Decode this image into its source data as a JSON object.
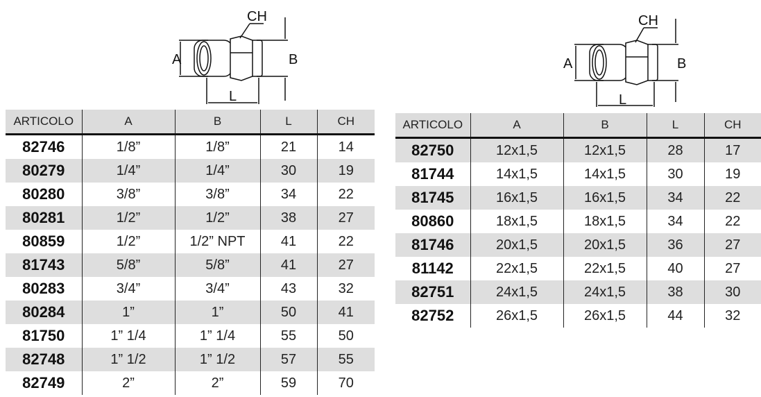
{
  "diagram_labels": {
    "ch": "CH",
    "a": "A",
    "b": "B",
    "l": "L"
  },
  "headers": [
    "ARTICOLO",
    "A",
    "B",
    "L",
    "CH"
  ],
  "table_left": [
    [
      "82746",
      "1/8”",
      "1/8”",
      "21",
      "14"
    ],
    [
      "80279",
      "1/4”",
      "1/4”",
      "30",
      "19"
    ],
    [
      "80280",
      "3/8”",
      "3/8”",
      "34",
      "22"
    ],
    [
      "80281",
      "1/2”",
      "1/2”",
      "38",
      "27"
    ],
    [
      "80859",
      "1/2”",
      "1/2” NPT",
      "41",
      "22"
    ],
    [
      "81743",
      "5/8”",
      "5/8”",
      "41",
      "27"
    ],
    [
      "80283",
      "3/4”",
      "3/4”",
      "43",
      "32"
    ],
    [
      "80284",
      "1”",
      "1”",
      "50",
      "41"
    ],
    [
      "81750",
      "1” 1/4",
      "1” 1/4",
      "55",
      "50"
    ],
    [
      "82748",
      "1” 1/2",
      "1” 1/2",
      "57",
      "55"
    ],
    [
      "82749",
      "2”",
      "2”",
      "59",
      "70"
    ]
  ],
  "table_right": [
    [
      "82750",
      "12x1,5",
      "12x1,5",
      "28",
      "17"
    ],
    [
      "81744",
      "14x1,5",
      "14x1,5",
      "30",
      "19"
    ],
    [
      "81745",
      "16x1,5",
      "16x1,5",
      "34",
      "22"
    ],
    [
      "80860",
      "18x1,5",
      "18x1,5",
      "34",
      "22"
    ],
    [
      "81746",
      "20x1,5",
      "20x1,5",
      "36",
      "27"
    ],
    [
      "81142",
      "22x1,5",
      "22x1,5",
      "40",
      "27"
    ],
    [
      "82751",
      "24x1,5",
      "24x1,5",
      "38",
      "30"
    ],
    [
      "82752",
      "26x1,5",
      "26x1,5",
      "44",
      "32"
    ]
  ]
}
